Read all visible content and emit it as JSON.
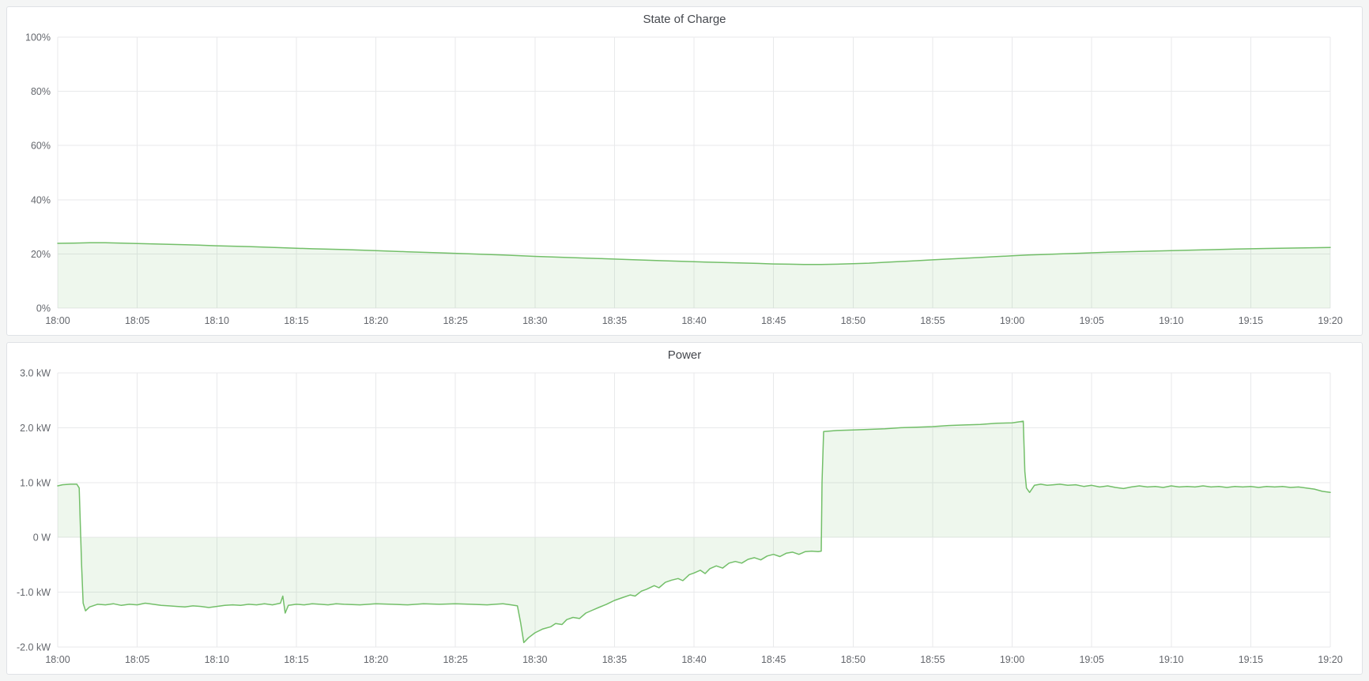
{
  "colors": {
    "page_bg": "#f4f5f5",
    "panel_bg": "#ffffff",
    "panel_border": "#dfe2e6",
    "grid": "#e8e9eb",
    "axis_text": "#64676d",
    "title_text": "#44474d",
    "series_green": "#73bf69",
    "series_fill_opacity": 0.12
  },
  "chart_data": [
    {
      "type": "area",
      "title": "State of Charge",
      "xlabel": "",
      "ylabel": "",
      "xlim": [
        0,
        80
      ],
      "ylim": [
        0,
        100
      ],
      "baseline": 0,
      "grid": true,
      "legend": "hidden",
      "x_ticks": [
        {
          "m": 0,
          "label": "18:00"
        },
        {
          "m": 5,
          "label": "18:05"
        },
        {
          "m": 10,
          "label": "18:10"
        },
        {
          "m": 15,
          "label": "18:15"
        },
        {
          "m": 20,
          "label": "18:20"
        },
        {
          "m": 25,
          "label": "18:25"
        },
        {
          "m": 30,
          "label": "18:30"
        },
        {
          "m": 35,
          "label": "18:35"
        },
        {
          "m": 40,
          "label": "18:40"
        },
        {
          "m": 45,
          "label": "18:45"
        },
        {
          "m": 50,
          "label": "18:50"
        },
        {
          "m": 55,
          "label": "18:55"
        },
        {
          "m": 60,
          "label": "19:00"
        },
        {
          "m": 65,
          "label": "19:05"
        },
        {
          "m": 70,
          "label": "19:10"
        },
        {
          "m": 75,
          "label": "19:15"
        },
        {
          "m": 80,
          "label": "19:20"
        }
      ],
      "y_ticks": [
        {
          "v": 0,
          "label": "0%"
        },
        {
          "v": 20,
          "label": "20%"
        },
        {
          "v": 40,
          "label": "40%"
        },
        {
          "v": 60,
          "label": "60%"
        },
        {
          "v": 80,
          "label": "80%"
        },
        {
          "v": 100,
          "label": "100%"
        }
      ],
      "series": [
        {
          "color": "#73bf69",
          "points": [
            [
              0,
              23.9
            ],
            [
              1,
              24.0
            ],
            [
              2,
              24.1
            ],
            [
              3,
              24.1
            ],
            [
              4,
              24.0
            ],
            [
              6,
              23.7
            ],
            [
              8,
              23.4
            ],
            [
              10,
              23.0
            ],
            [
              12,
              22.7
            ],
            [
              14,
              22.3
            ],
            [
              16,
              21.9
            ],
            [
              18,
              21.6
            ],
            [
              20,
              21.2
            ],
            [
              22,
              20.8
            ],
            [
              24,
              20.4
            ],
            [
              26,
              20.0
            ],
            [
              28,
              19.6
            ],
            [
              30,
              19.1
            ],
            [
              32,
              18.7
            ],
            [
              34,
              18.3
            ],
            [
              36,
              17.9
            ],
            [
              38,
              17.5
            ],
            [
              40,
              17.1
            ],
            [
              42,
              16.8
            ],
            [
              44,
              16.5
            ],
            [
              45,
              16.3
            ],
            [
              46,
              16.2
            ],
            [
              47,
              16.1
            ],
            [
              48,
              16.1
            ],
            [
              49,
              16.2
            ],
            [
              50,
              16.4
            ],
            [
              51,
              16.6
            ],
            [
              52,
              16.9
            ],
            [
              53,
              17.2
            ],
            [
              54,
              17.5
            ],
            [
              55,
              17.8
            ],
            [
              56,
              18.1
            ],
            [
              57,
              18.4
            ],
            [
              58,
              18.7
            ],
            [
              59,
              19.0
            ],
            [
              60,
              19.3
            ],
            [
              61,
              19.6
            ],
            [
              62,
              19.8
            ],
            [
              63,
              20.0
            ],
            [
              64,
              20.2
            ],
            [
              65,
              20.4
            ],
            [
              66,
              20.6
            ],
            [
              68,
              20.9
            ],
            [
              70,
              21.2
            ],
            [
              72,
              21.5
            ],
            [
              74,
              21.8
            ],
            [
              76,
              22.0
            ],
            [
              78,
              22.2
            ],
            [
              80,
              22.4
            ]
          ]
        }
      ]
    },
    {
      "type": "area",
      "title": "Power",
      "xlabel": "",
      "ylabel": "",
      "xlim": [
        0,
        80
      ],
      "ylim": [
        -2,
        3
      ],
      "baseline": 0,
      "grid": true,
      "legend": "hidden",
      "x_ticks": [
        {
          "m": 0,
          "label": "18:00"
        },
        {
          "m": 5,
          "label": "18:05"
        },
        {
          "m": 10,
          "label": "18:10"
        },
        {
          "m": 15,
          "label": "18:15"
        },
        {
          "m": 20,
          "label": "18:20"
        },
        {
          "m": 25,
          "label": "18:25"
        },
        {
          "m": 30,
          "label": "18:30"
        },
        {
          "m": 35,
          "label": "18:35"
        },
        {
          "m": 40,
          "label": "18:40"
        },
        {
          "m": 45,
          "label": "18:45"
        },
        {
          "m": 50,
          "label": "18:50"
        },
        {
          "m": 55,
          "label": "18:55"
        },
        {
          "m": 60,
          "label": "19:00"
        },
        {
          "m": 65,
          "label": "19:05"
        },
        {
          "m": 70,
          "label": "19:10"
        },
        {
          "m": 75,
          "label": "19:15"
        },
        {
          "m": 80,
          "label": "19:20"
        }
      ],
      "y_ticks": [
        {
          "v": -2,
          "label": "-2.0 kW"
        },
        {
          "v": -1,
          "label": "-1.0 kW"
        },
        {
          "v": 0,
          "label": "0 W"
        },
        {
          "v": 1,
          "label": "1.0 kW"
        },
        {
          "v": 2,
          "label": "2.0 kW"
        },
        {
          "v": 3,
          "label": "3.0 kW"
        }
      ],
      "series": [
        {
          "color": "#73bf69",
          "points": [
            [
              0,
              0.94
            ],
            [
              0.3,
              0.96
            ],
            [
              0.8,
              0.97
            ],
            [
              1.2,
              0.97
            ],
            [
              1.35,
              0.9
            ],
            [
              1.5,
              -0.5
            ],
            [
              1.6,
              -1.2
            ],
            [
              1.75,
              -1.34
            ],
            [
              2.0,
              -1.27
            ],
            [
              2.5,
              -1.22
            ],
            [
              3,
              -1.23
            ],
            [
              3.5,
              -1.21
            ],
            [
              4,
              -1.24
            ],
            [
              4.5,
              -1.22
            ],
            [
              5,
              -1.23
            ],
            [
              5.5,
              -1.2
            ],
            [
              6,
              -1.22
            ],
            [
              6.5,
              -1.24
            ],
            [
              7,
              -1.25
            ],
            [
              7.5,
              -1.26
            ],
            [
              8,
              -1.27
            ],
            [
              8.5,
              -1.25
            ],
            [
              9,
              -1.26
            ],
            [
              9.5,
              -1.28
            ],
            [
              10,
              -1.26
            ],
            [
              10.5,
              -1.24
            ],
            [
              11,
              -1.23
            ],
            [
              11.5,
              -1.24
            ],
            [
              12,
              -1.22
            ],
            [
              12.5,
              -1.23
            ],
            [
              13,
              -1.21
            ],
            [
              13.5,
              -1.23
            ],
            [
              14.0,
              -1.2
            ],
            [
              14.15,
              -1.07
            ],
            [
              14.3,
              -1.38
            ],
            [
              14.5,
              -1.24
            ],
            [
              15,
              -1.22
            ],
            [
              15.5,
              -1.23
            ],
            [
              16,
              -1.21
            ],
            [
              16.5,
              -1.22
            ],
            [
              17,
              -1.23
            ],
            [
              17.5,
              -1.21
            ],
            [
              18,
              -1.22
            ],
            [
              19,
              -1.23
            ],
            [
              20,
              -1.21
            ],
            [
              21,
              -1.22
            ],
            [
              22,
              -1.23
            ],
            [
              23,
              -1.21
            ],
            [
              24,
              -1.22
            ],
            [
              25,
              -1.21
            ],
            [
              26,
              -1.22
            ],
            [
              27,
              -1.23
            ],
            [
              27.5,
              -1.22
            ],
            [
              28,
              -1.21
            ],
            [
              28.5,
              -1.23
            ],
            [
              28.9,
              -1.25
            ],
            [
              29.1,
              -1.55
            ],
            [
              29.3,
              -1.92
            ],
            [
              29.6,
              -1.83
            ],
            [
              30,
              -1.74
            ],
            [
              30.5,
              -1.67
            ],
            [
              31,
              -1.63
            ],
            [
              31.3,
              -1.57
            ],
            [
              31.7,
              -1.59
            ],
            [
              32,
              -1.5
            ],
            [
              32.4,
              -1.46
            ],
            [
              32.8,
              -1.48
            ],
            [
              33.2,
              -1.38
            ],
            [
              33.6,
              -1.33
            ],
            [
              34,
              -1.28
            ],
            [
              34.5,
              -1.22
            ],
            [
              35,
              -1.15
            ],
            [
              35.5,
              -1.1
            ],
            [
              36,
              -1.05
            ],
            [
              36.3,
              -1.07
            ],
            [
              36.7,
              -0.98
            ],
            [
              37,
              -0.95
            ],
            [
              37.5,
              -0.88
            ],
            [
              37.8,
              -0.92
            ],
            [
              38.2,
              -0.82
            ],
            [
              38.6,
              -0.78
            ],
            [
              39,
              -0.75
            ],
            [
              39.3,
              -0.79
            ],
            [
              39.7,
              -0.68
            ],
            [
              40,
              -0.65
            ],
            [
              40.4,
              -0.6
            ],
            [
              40.7,
              -0.66
            ],
            [
              41,
              -0.57
            ],
            [
              41.4,
              -0.52
            ],
            [
              41.8,
              -0.56
            ],
            [
              42.2,
              -0.47
            ],
            [
              42.6,
              -0.44
            ],
            [
              43,
              -0.47
            ],
            [
              43.4,
              -0.4
            ],
            [
              43.8,
              -0.37
            ],
            [
              44.2,
              -0.41
            ],
            [
              44.6,
              -0.34
            ],
            [
              45,
              -0.31
            ],
            [
              45.4,
              -0.35
            ],
            [
              45.8,
              -0.29
            ],
            [
              46.2,
              -0.27
            ],
            [
              46.6,
              -0.31
            ],
            [
              47,
              -0.26
            ],
            [
              47.4,
              -0.25
            ],
            [
              47.8,
              -0.26
            ],
            [
              48.0,
              -0.25
            ],
            [
              48.05,
              1.0
            ],
            [
              48.15,
              1.93
            ],
            [
              49,
              1.95
            ],
            [
              50,
              1.96
            ],
            [
              51,
              1.97
            ],
            [
              52,
              1.98
            ],
            [
              53,
              2.0
            ],
            [
              54,
              2.01
            ],
            [
              55,
              2.02
            ],
            [
              56,
              2.04
            ],
            [
              57,
              2.05
            ],
            [
              58,
              2.06
            ],
            [
              59,
              2.08
            ],
            [
              60,
              2.09
            ],
            [
              60.5,
              2.11
            ],
            [
              60.7,
              2.12
            ],
            [
              60.8,
              1.2
            ],
            [
              60.9,
              0.9
            ],
            [
              61.1,
              0.82
            ],
            [
              61.4,
              0.95
            ],
            [
              61.8,
              0.97
            ],
            [
              62.2,
              0.95
            ],
            [
              62.6,
              0.96
            ],
            [
              63,
              0.97
            ],
            [
              63.5,
              0.95
            ],
            [
              64,
              0.96
            ],
            [
              64.5,
              0.93
            ],
            [
              65,
              0.95
            ],
            [
              65.5,
              0.92
            ],
            [
              66,
              0.94
            ],
            [
              66.5,
              0.91
            ],
            [
              67,
              0.89
            ],
            [
              67.5,
              0.92
            ],
            [
              68,
              0.94
            ],
            [
              68.5,
              0.92
            ],
            [
              69,
              0.93
            ],
            [
              69.5,
              0.91
            ],
            [
              70,
              0.94
            ],
            [
              70.5,
              0.92
            ],
            [
              71,
              0.93
            ],
            [
              71.5,
              0.92
            ],
            [
              72,
              0.94
            ],
            [
              72.5,
              0.92
            ],
            [
              73,
              0.93
            ],
            [
              73.5,
              0.91
            ],
            [
              74,
              0.93
            ],
            [
              74.5,
              0.92
            ],
            [
              75,
              0.93
            ],
            [
              75.5,
              0.91
            ],
            [
              76,
              0.93
            ],
            [
              76.5,
              0.92
            ],
            [
              77,
              0.93
            ],
            [
              77.5,
              0.91
            ],
            [
              78,
              0.92
            ],
            [
              78.5,
              0.9
            ],
            [
              79,
              0.88
            ],
            [
              79.5,
              0.84
            ],
            [
              80,
              0.82
            ]
          ]
        }
      ]
    }
  ]
}
